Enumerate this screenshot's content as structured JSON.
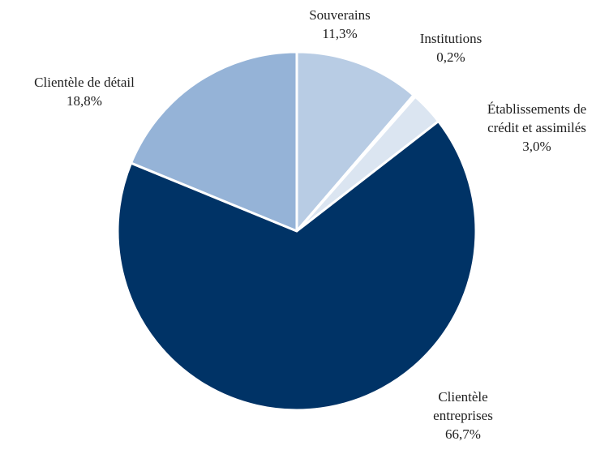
{
  "chart_data": {
    "type": "pie",
    "title": "",
    "start_angle_deg": 0,
    "direction": "clockwise",
    "slices": [
      {
        "label_lines": [
          "Souverains"
        ],
        "value_label": "11,3%",
        "value": 11.3,
        "color": "#b8cce4"
      },
      {
        "label_lines": [
          "Institutions"
        ],
        "value_label": "0,2%",
        "value": 0.2,
        "color": "#d6dfec"
      },
      {
        "label_lines": [
          "Établissements de",
          "crédit et assimilés"
        ],
        "value_label": "3,0%",
        "value": 3.0,
        "color": "#dbe5f1"
      },
      {
        "label_lines": [
          "Clientèle",
          "entreprises"
        ],
        "value_label": "66,7%",
        "value": 66.7,
        "color": "#003366"
      },
      {
        "label_lines": [
          "Clientèle de détail"
        ],
        "value_label": "18,8%",
        "value": 18.8,
        "color": "#95b3d7"
      }
    ]
  }
}
